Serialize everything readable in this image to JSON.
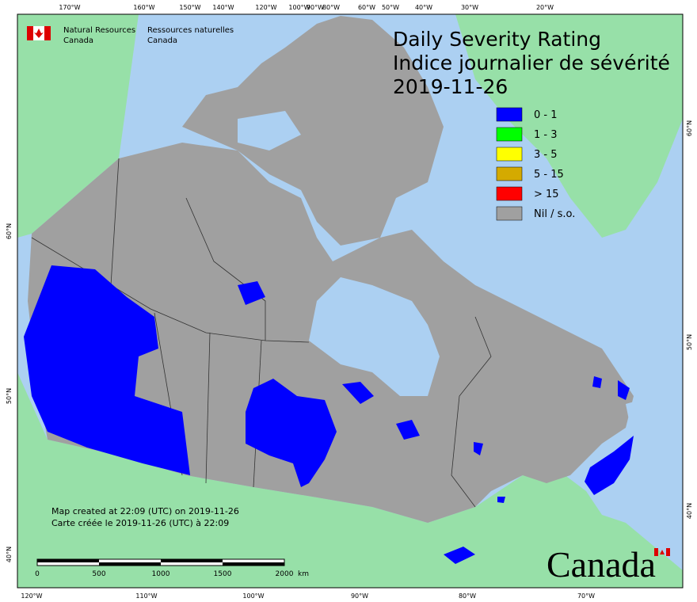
{
  "agency": {
    "en_line1": "Natural Resources",
    "en_line2": "Canada",
    "fr_line1": "Ressources naturelles",
    "fr_line2": "Canada"
  },
  "title": {
    "line1": "Daily Severity Rating",
    "line2": "Indice journalier de sévérité",
    "date": "2019-11-26"
  },
  "legend": [
    {
      "label": "0 - 1",
      "color": "#0000ff"
    },
    {
      "label": "1 - 3",
      "color": "#00ff00"
    },
    {
      "label": "3 - 5",
      "color": "#ffff00"
    },
    {
      "label": "5 - 15",
      "color": "#d4aa00"
    },
    {
      "label": "> 15",
      "color": "#ff0000"
    },
    {
      "label": "Nil / s.o.",
      "color": "#a0a0a0"
    }
  ],
  "credits": {
    "line1": "Map created at 22:09 (UTC) on 2019-11-26",
    "line2": "Carte créée le 2019-11-26 (UTC) à 22:09"
  },
  "scale": {
    "labels": [
      "0",
      "500",
      "1000",
      "1500",
      "2000"
    ],
    "unit": "km"
  },
  "graticule": {
    "top": [
      "170°W",
      "160°W",
      "150°W",
      "140°W",
      "120°W",
      "100°W",
      "90°W",
      "80°W",
      "60°W",
      "50°W",
      "40°W",
      "30°W",
      "20°W"
    ],
    "bottom": [
      "120°W",
      "110°W",
      "100°W",
      "90°W",
      "80°W",
      "70°W"
    ],
    "left": [
      "60°N",
      "50°N",
      "40°N"
    ],
    "right": [
      "60°N",
      "50°N",
      "40°N"
    ]
  },
  "wordmark": "Canada"
}
